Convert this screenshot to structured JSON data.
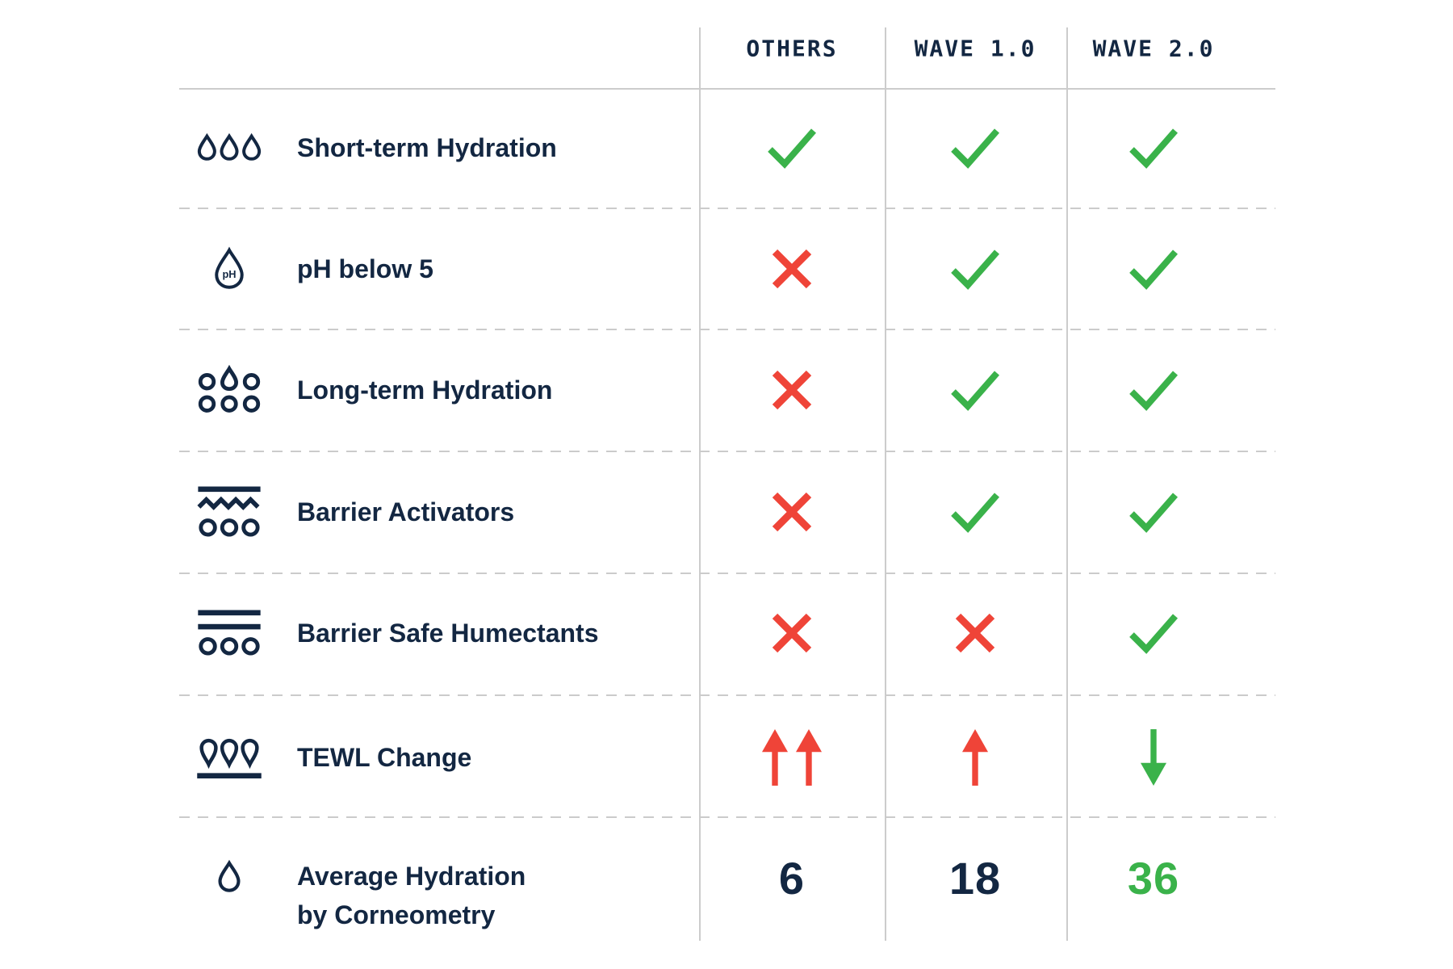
{
  "table": {
    "columns": [
      {
        "label": "OTHERS"
      },
      {
        "label": "WAVE 1.0"
      },
      {
        "label": "WAVE 2.0"
      }
    ],
    "rows": [
      {
        "icon": "three-droplets-icon",
        "label": "Short-term Hydration",
        "cells": [
          {
            "type": "check"
          },
          {
            "type": "check"
          },
          {
            "type": "check"
          }
        ]
      },
      {
        "icon": "ph-droplet-icon",
        "label": "pH below 5",
        "cells": [
          {
            "type": "cross"
          },
          {
            "type": "check"
          },
          {
            "type": "check"
          }
        ]
      },
      {
        "icon": "long-term-hydration-icon",
        "label": "Long-term Hydration",
        "cells": [
          {
            "type": "cross"
          },
          {
            "type": "check"
          },
          {
            "type": "check"
          }
        ]
      },
      {
        "icon": "barrier-activators-icon",
        "label": "Barrier Activators",
        "cells": [
          {
            "type": "cross"
          },
          {
            "type": "check"
          },
          {
            "type": "check"
          }
        ]
      },
      {
        "icon": "barrier-safe-humectants-icon",
        "label": "Barrier Safe Humectants",
        "cells": [
          {
            "type": "cross"
          },
          {
            "type": "cross"
          },
          {
            "type": "check"
          }
        ]
      },
      {
        "icon": "tewl-droplets-icon",
        "label": "TEWL Change",
        "cells": [
          {
            "type": "arrow-up-double"
          },
          {
            "type": "arrow-up"
          },
          {
            "type": "arrow-down"
          }
        ]
      },
      {
        "icon": "single-droplet-icon",
        "label": "Average Hydration",
        "label2": "by Corneometry",
        "cells": [
          {
            "type": "number",
            "value": "6"
          },
          {
            "type": "number",
            "value": "18"
          },
          {
            "type": "number",
            "value": "36",
            "highlight": true
          }
        ]
      }
    ]
  },
  "colors": {
    "navy": "#132742",
    "green": "#3AB24A",
    "red": "#EF4438",
    "grid_line": "#CCCCCC",
    "dash_line": "#CBCBCB"
  }
}
